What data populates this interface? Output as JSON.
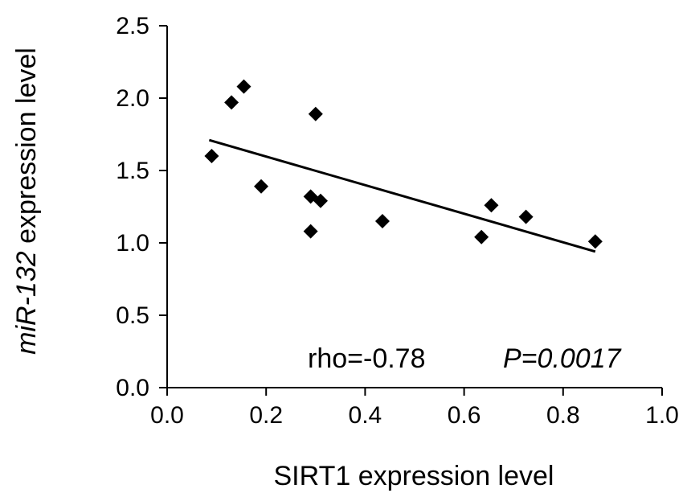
{
  "chart_data": {
    "type": "scatter",
    "xlabel": "SIRT1 expression level",
    "ylabel_italic": "miR-132",
    "ylabel_rest": " expression level",
    "xlim": [
      0.0,
      1.0
    ],
    "ylim": [
      0.0,
      2.5
    ],
    "xticks": [
      "0.0",
      "0.2",
      "0.4",
      "0.6",
      "0.8",
      "1.0"
    ],
    "yticks": [
      "0.0",
      "0.5",
      "1.0",
      "1.5",
      "2.0",
      "2.5"
    ],
    "xtick_values": [
      0.0,
      0.2,
      0.4,
      0.6,
      0.8,
      1.0
    ],
    "ytick_values": [
      0.0,
      0.5,
      1.0,
      1.5,
      2.0,
      2.5
    ],
    "points": [
      {
        "x": 0.09,
        "y": 1.6
      },
      {
        "x": 0.13,
        "y": 1.97
      },
      {
        "x": 0.155,
        "y": 2.08
      },
      {
        "x": 0.19,
        "y": 1.39
      },
      {
        "x": 0.29,
        "y": 1.32
      },
      {
        "x": 0.29,
        "y": 1.08
      },
      {
        "x": 0.3,
        "y": 1.89
      },
      {
        "x": 0.31,
        "y": 1.29
      },
      {
        "x": 0.435,
        "y": 1.15
      },
      {
        "x": 0.635,
        "y": 1.04
      },
      {
        "x": 0.655,
        "y": 1.26
      },
      {
        "x": 0.725,
        "y": 1.18
      },
      {
        "x": 0.865,
        "y": 1.01
      }
    ],
    "trendline": {
      "x": [
        0.085,
        0.865
      ],
      "y": [
        1.71,
        0.94
      ]
    },
    "marker": "diamond",
    "color": "#000000",
    "annotation_rho": "rho=-0.78",
    "annotation_p": "P=0.0017"
  }
}
